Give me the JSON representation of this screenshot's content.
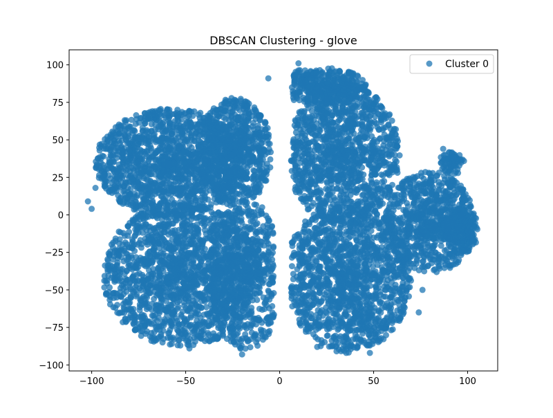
{
  "chart_data": {
    "type": "scatter",
    "title": "DBSCAN Clustering - glove",
    "xlabel": "",
    "ylabel": "",
    "xlim": [
      -112,
      116
    ],
    "ylim": [
      -104,
      110
    ],
    "xticks": [
      -100,
      -50,
      0,
      50,
      100
    ],
    "yticks": [
      -100,
      -75,
      -50,
      -25,
      0,
      25,
      50,
      75,
      100
    ],
    "xtick_labels": [
      "−100",
      "−50",
      "0",
      "50",
      "100"
    ],
    "ytick_labels": [
      "−100",
      "−75",
      "−50",
      "−25",
      "0",
      "25",
      "50",
      "75",
      "100"
    ],
    "grid": false,
    "legend_position": "top-right",
    "series": [
      {
        "name": "Cluster 0",
        "color": "#1f77b4",
        "regions": [
          {
            "cx": -58,
            "cy": 35,
            "rx": 40,
            "ry": 36,
            "n": 1500
          },
          {
            "cx": -24,
            "cy": 42,
            "rx": 20,
            "ry": 36,
            "n": 700
          },
          {
            "cx": -52,
            "cy": -40,
            "rx": 42,
            "ry": 48,
            "n": 1700
          },
          {
            "cx": -18,
            "cy": -40,
            "rx": 20,
            "ry": 50,
            "n": 700
          },
          {
            "cx": 34,
            "cy": 40,
            "rx": 30,
            "ry": 48,
            "n": 1300
          },
          {
            "cx": 22,
            "cy": 86,
            "rx": 24,
            "ry": 12,
            "n": 400
          },
          {
            "cx": 36,
            "cy": -42,
            "rx": 34,
            "ry": 50,
            "n": 1500
          },
          {
            "cx": 80,
            "cy": -5,
            "rx": 24,
            "ry": 34,
            "n": 800
          },
          {
            "cx": 92,
            "cy": 35,
            "rx": 7,
            "ry": 8,
            "n": 80
          },
          {
            "cx": 96,
            "cy": -10,
            "rx": 10,
            "ry": 16,
            "n": 200
          }
        ],
        "outliers": [
          [
            -102,
            9
          ],
          [
            -100,
            4
          ],
          [
            -98,
            18
          ],
          [
            -96,
            33
          ],
          [
            -93,
            27
          ],
          [
            8,
            92
          ],
          [
            10,
            101
          ],
          [
            -6,
            91
          ],
          [
            74,
            -65
          ],
          [
            87,
            44
          ],
          [
            63,
            -68
          ],
          [
            76,
            -50
          ],
          [
            99,
            10
          ],
          [
            102,
            -14
          ],
          [
            -48,
            -89
          ],
          [
            -20,
            -93
          ],
          [
            20,
            -88
          ],
          [
            48,
            -92
          ],
          [
            -70,
            68
          ],
          [
            -82,
            62
          ]
        ]
      }
    ]
  }
}
